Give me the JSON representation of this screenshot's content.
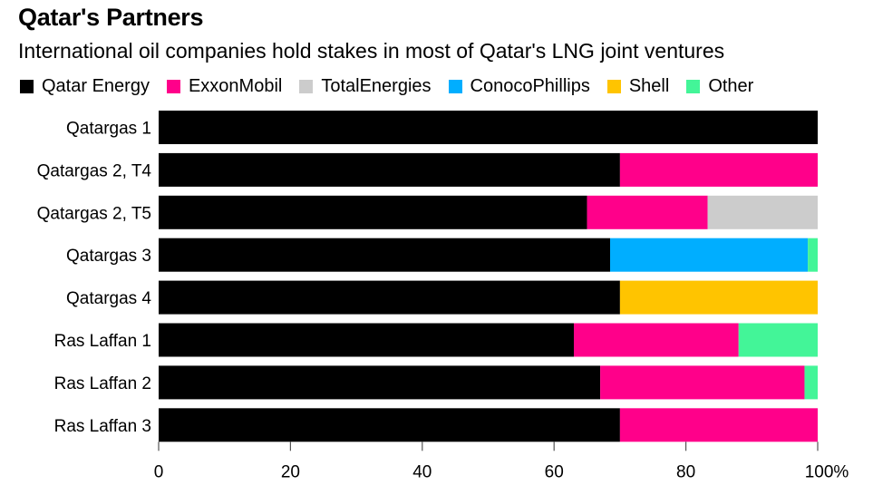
{
  "chart_data": {
    "type": "bar",
    "orientation": "horizontal",
    "stacked": true,
    "title": "Qatar's Partners",
    "subtitle": "International oil companies hold stakes in most of Qatar's LNG joint ventures",
    "xlabel": "",
    "ylabel": "",
    "xlim": [
      0,
      100
    ],
    "x_ticks": [
      "0",
      "20",
      "40",
      "60",
      "80",
      "100%"
    ],
    "x_tick_values": [
      0,
      20,
      40,
      60,
      80,
      100
    ],
    "grid": false,
    "legend_position": "top-left",
    "categories": [
      "Qatargas 1",
      "Qatargas 2, T4",
      "Qatargas 2, T5",
      "Qatargas 3",
      "Qatargas 4",
      "Ras Laffan 1",
      "Ras Laffan 2",
      "Ras Laffan 3"
    ],
    "series": [
      {
        "name": "Qatar Energy",
        "color": "#000000",
        "values": [
          100,
          70,
          65,
          68.5,
          70,
          63,
          67,
          70
        ]
      },
      {
        "name": "ExxonMobil",
        "color": "#FF008A",
        "values": [
          0,
          30,
          18.3,
          0,
          0,
          25,
          31,
          30
        ]
      },
      {
        "name": "TotalEnergies",
        "color": "#CCCCCC",
        "values": [
          0,
          0,
          16.7,
          0,
          0,
          0,
          0,
          0
        ]
      },
      {
        "name": "ConocoPhillips",
        "color": "#00AEFF",
        "values": [
          0,
          0,
          0,
          30,
          0,
          0,
          0,
          0
        ]
      },
      {
        "name": "Shell",
        "color": "#FFC400",
        "values": [
          0,
          0,
          0,
          0,
          30,
          0,
          0,
          0
        ]
      },
      {
        "name": "Other",
        "color": "#43F598",
        "values": [
          0,
          0,
          0,
          1.5,
          0,
          12,
          2,
          0
        ]
      }
    ]
  }
}
